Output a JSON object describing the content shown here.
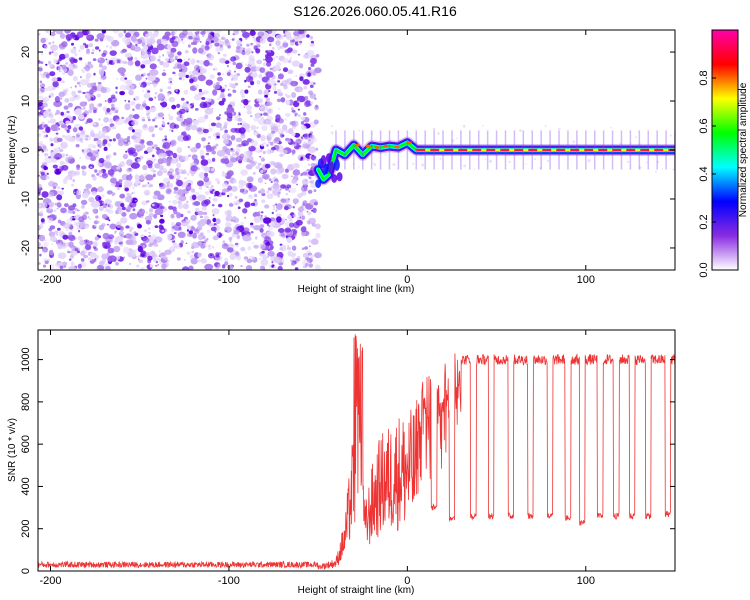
{
  "title": "S126.2026.060.05.41.R16",
  "chart_data": [
    {
      "type": "heatmap",
      "name": "spectrogram",
      "xlabel": "Height of straight line (km)",
      "ylabel": "Frequency (Hz)",
      "xlim": [
        -207,
        150
      ],
      "ylim": [
        -24.5,
        24.5
      ],
      "xticks": [
        -200,
        -100,
        0,
        100
      ],
      "yticks": [
        -20,
        -10,
        0,
        10,
        20
      ],
      "xtick_labels": [
        "-200",
        "-100",
        "0",
        "100"
      ],
      "ytick_labels": [
        "-20",
        "-10",
        "0",
        "10",
        "20"
      ],
      "noise_region_x": [
        -207,
        -50
      ],
      "onset_x": -50,
      "carrier": [
        {
          "x": -50,
          "f": -4
        },
        {
          "x": -47,
          "f": -6
        },
        {
          "x": -44,
          "f": -5
        },
        {
          "x": -40,
          "f": 0
        },
        {
          "x": -35,
          "f": -1
        },
        {
          "x": -30,
          "f": 1
        },
        {
          "x": -25,
          "f": -1
        },
        {
          "x": -20,
          "f": 0.8
        },
        {
          "x": -15,
          "f": 0.5
        },
        {
          "x": -10,
          "f": 0.8
        },
        {
          "x": -5,
          "f": 0.6
        },
        {
          "x": 0,
          "f": 1.5
        },
        {
          "x": 5,
          "f": 0
        },
        {
          "x": 150,
          "f": 0
        }
      ],
      "colorbar": {
        "label": "Normalized spectral amplitude",
        "range": [
          0,
          1
        ],
        "ticks": [
          0.0,
          0.2,
          0.4,
          0.6,
          0.8
        ],
        "tick_labels": [
          "0.0",
          "0.2",
          "0.4",
          "0.6",
          "0.8"
        ],
        "colors": [
          "#ffffff",
          "#8a2be2",
          "#0000ff",
          "#00ffff",
          "#00ff00",
          "#ffff00",
          "#ff0000",
          "#ff00aa"
        ]
      }
    },
    {
      "type": "line",
      "name": "snr",
      "xlabel": "Height of straight line (km)",
      "ylabel": "SNR (10 * v/v)",
      "xlim": [
        -207,
        150
      ],
      "ylim": [
        0,
        1140
      ],
      "xticks": [
        -200,
        -100,
        0,
        100
      ],
      "yticks": [
        0,
        200,
        400,
        600,
        800,
        1000
      ],
      "xtick_labels": [
        "-200",
        "-100",
        "0",
        "100"
      ],
      "ytick_labels": [
        "0",
        "200",
        "400",
        "600",
        "800",
        "1000"
      ],
      "series": [
        {
          "name": "SNR",
          "color": "#ee3333",
          "points": [
            {
              "x": -207,
              "y": 30
            },
            {
              "x": -50,
              "y": 30
            },
            {
              "x": -40,
              "y": 60
            },
            {
              "x": -35,
              "y": 250
            },
            {
              "x": -30,
              "y": 700
            },
            {
              "x": -27,
              "y": 1120
            },
            {
              "x": -24,
              "y": 300
            },
            {
              "x": -20,
              "y": 500
            },
            {
              "x": -15,
              "y": 650
            },
            {
              "x": -10,
              "y": 700
            },
            {
              "x": -5,
              "y": 750
            },
            {
              "x": 0,
              "y": 760
            },
            {
              "x": 5,
              "y": 780
            },
            {
              "x": 10,
              "y": 900
            },
            {
              "x": 20,
              "y": 950
            },
            {
              "x": 30,
              "y": 1000
            },
            {
              "x": 100,
              "y": 1000
            },
            {
              "x": 150,
              "y": 1000
            }
          ],
          "dropouts": [
            {
              "x": 15,
              "low": 300
            },
            {
              "x": 25,
              "low": 250
            },
            {
              "x": 37,
              "low": 260
            },
            {
              "x": 47,
              "low": 260
            },
            {
              "x": 58,
              "low": 260
            },
            {
              "x": 69,
              "low": 260
            },
            {
              "x": 80,
              "low": 260
            },
            {
              "x": 90,
              "low": 250
            },
            {
              "x": 98,
              "low": 230
            },
            {
              "x": 108,
              "low": 260
            },
            {
              "x": 117,
              "low": 260
            },
            {
              "x": 126,
              "low": 260
            },
            {
              "x": 135,
              "low": 260
            },
            {
              "x": 146,
              "low": 270
            }
          ]
        }
      ]
    }
  ]
}
